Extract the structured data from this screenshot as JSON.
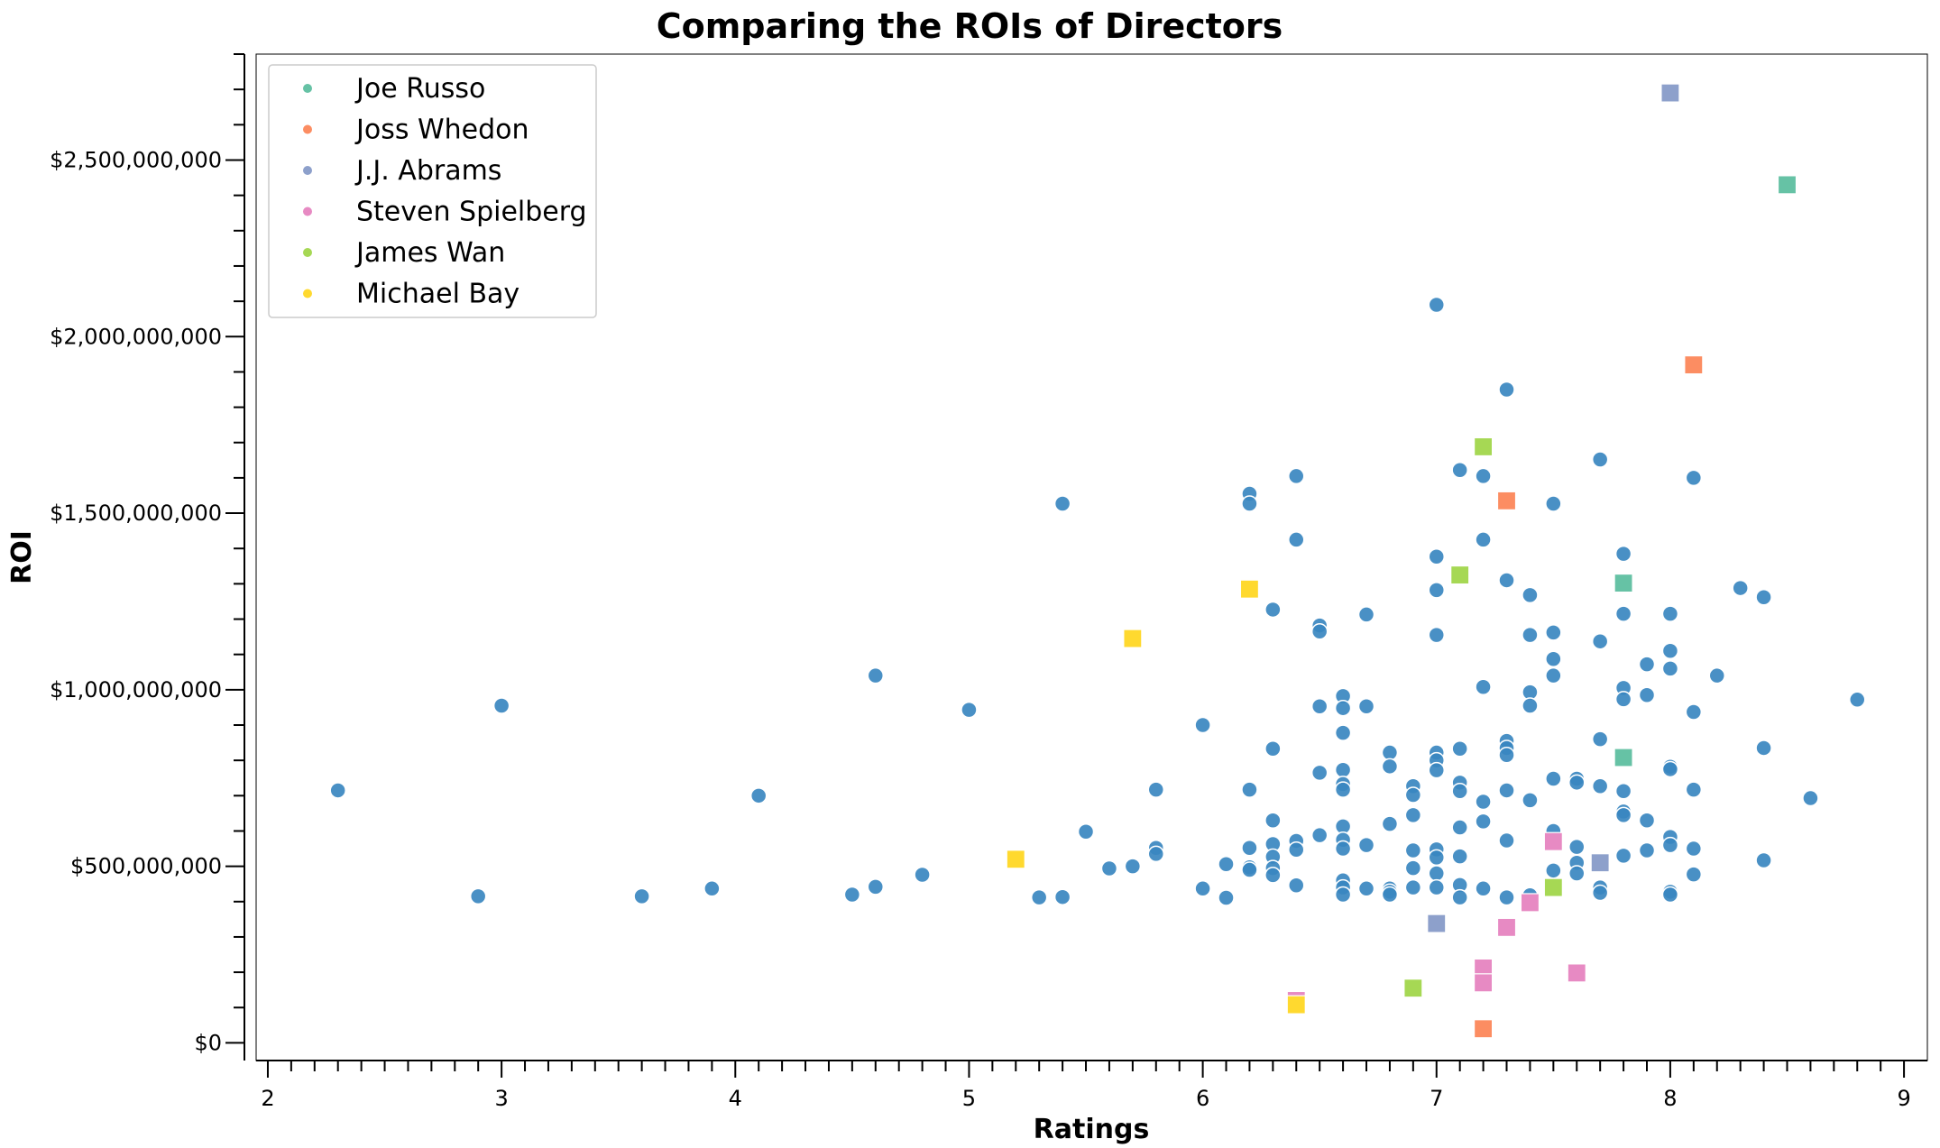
{
  "chart_data": {
    "type": "scatter",
    "title": "Comparing the ROIs of Directors",
    "xlabel": "Ratings",
    "ylabel": "ROI",
    "xlim": [
      1.95,
      9.1
    ],
    "ylim": [
      -50000000,
      2800000000
    ],
    "x_ticks": [
      2,
      3,
      4,
      5,
      6,
      7,
      8,
      9
    ],
    "x_tick_labels": [
      "2",
      "3",
      "4",
      "5",
      "6",
      "7",
      "8",
      "9"
    ],
    "y_ticks": [
      0,
      500000000,
      1000000000,
      1500000000,
      2000000000,
      2500000000
    ],
    "y_tick_labels": [
      "$0",
      "$500,000,000",
      "$1,000,000,000",
      "$1,500,000,000",
      "$2,000,000,000",
      "$2,500,000,000"
    ],
    "grid": false,
    "legend_position": "top-left",
    "series": [
      {
        "color": "#3a87c0",
        "marker": "circle",
        "points": [
          [
            2.3,
            715000000
          ],
          [
            2.9,
            415000000
          ],
          [
            3.0,
            955000000
          ],
          [
            3.6,
            415000000
          ],
          [
            3.9,
            437000000
          ],
          [
            4.1,
            700000000
          ],
          [
            4.5,
            420000000
          ],
          [
            4.6,
            1040000000
          ],
          [
            4.6,
            442000000
          ],
          [
            4.8,
            476000000
          ],
          [
            5.0,
            943000000
          ],
          [
            5.3,
            412000000
          ],
          [
            5.4,
            1527000000
          ],
          [
            5.4,
            413000000
          ],
          [
            5.5,
            598000000
          ],
          [
            5.6,
            494000000
          ],
          [
            5.7,
            500000000
          ],
          [
            5.8,
            717000000
          ],
          [
            5.8,
            552000000
          ],
          [
            5.8,
            535000000
          ],
          [
            6.0,
            900000000
          ],
          [
            6.0,
            437000000
          ],
          [
            6.1,
            506000000
          ],
          [
            6.1,
            411000000
          ],
          [
            6.2,
            1555000000
          ],
          [
            6.2,
            1527000000
          ],
          [
            6.2,
            717000000
          ],
          [
            6.2,
            552000000
          ],
          [
            6.2,
            497000000
          ],
          [
            6.2,
            490000000
          ],
          [
            6.3,
            1227000000
          ],
          [
            6.3,
            833000000
          ],
          [
            6.3,
            630000000
          ],
          [
            6.3,
            563000000
          ],
          [
            6.3,
            527000000
          ],
          [
            6.3,
            495000000
          ],
          [
            6.3,
            475000000
          ],
          [
            6.4,
            1605000000
          ],
          [
            6.4,
            1425000000
          ],
          [
            6.4,
            572000000
          ],
          [
            6.4,
            547000000
          ],
          [
            6.4,
            446000000
          ],
          [
            6.5,
            1182000000
          ],
          [
            6.5,
            1165000000
          ],
          [
            6.5,
            953000000
          ],
          [
            6.5,
            765000000
          ],
          [
            6.5,
            588000000
          ],
          [
            6.6,
            982000000
          ],
          [
            6.6,
            948000000
          ],
          [
            6.6,
            878000000
          ],
          [
            6.6,
            773000000
          ],
          [
            6.6,
            733000000
          ],
          [
            6.6,
            717000000
          ],
          [
            6.6,
            613000000
          ],
          [
            6.6,
            575000000
          ],
          [
            6.6,
            550000000
          ],
          [
            6.6,
            460000000
          ],
          [
            6.6,
            440000000
          ],
          [
            6.6,
            420000000
          ],
          [
            6.7,
            1213000000
          ],
          [
            6.7,
            953000000
          ],
          [
            6.7,
            560000000
          ],
          [
            6.7,
            437000000
          ],
          [
            6.8,
            822000000
          ],
          [
            6.8,
            783000000
          ],
          [
            6.8,
            620000000
          ],
          [
            6.8,
            437000000
          ],
          [
            6.8,
            428000000
          ],
          [
            6.8,
            420000000
          ],
          [
            6.9,
            727000000
          ],
          [
            6.9,
            702000000
          ],
          [
            6.9,
            645000000
          ],
          [
            6.9,
            545000000
          ],
          [
            6.9,
            495000000
          ],
          [
            6.9,
            440000000
          ],
          [
            7.0,
            2090000000
          ],
          [
            7.0,
            1377000000
          ],
          [
            7.0,
            1282000000
          ],
          [
            7.0,
            1155000000
          ],
          [
            7.0,
            822000000
          ],
          [
            7.0,
            800000000
          ],
          [
            7.0,
            772000000
          ],
          [
            7.0,
            548000000
          ],
          [
            7.0,
            525000000
          ],
          [
            7.0,
            480000000
          ],
          [
            7.0,
            440000000
          ],
          [
            7.1,
            1622000000
          ],
          [
            7.1,
            833000000
          ],
          [
            7.1,
            737000000
          ],
          [
            7.1,
            713000000
          ],
          [
            7.1,
            610000000
          ],
          [
            7.1,
            528000000
          ],
          [
            7.1,
            447000000
          ],
          [
            7.1,
            412000000
          ],
          [
            7.2,
            1605000000
          ],
          [
            7.2,
            1425000000
          ],
          [
            7.2,
            1008000000
          ],
          [
            7.2,
            683000000
          ],
          [
            7.2,
            627000000
          ],
          [
            7.2,
            437000000
          ],
          [
            7.3,
            1850000000
          ],
          [
            7.3,
            1310000000
          ],
          [
            7.3,
            855000000
          ],
          [
            7.3,
            835000000
          ],
          [
            7.3,
            815000000
          ],
          [
            7.3,
            715000000
          ],
          [
            7.3,
            573000000
          ],
          [
            7.3,
            412000000
          ],
          [
            7.4,
            1268000000
          ],
          [
            7.4,
            1155000000
          ],
          [
            7.4,
            993000000
          ],
          [
            7.4,
            955000000
          ],
          [
            7.4,
            687000000
          ],
          [
            7.4,
            418000000
          ],
          [
            7.5,
            1527000000
          ],
          [
            7.5,
            1162000000
          ],
          [
            7.5,
            1087000000
          ],
          [
            7.5,
            1040000000
          ],
          [
            7.5,
            748000000
          ],
          [
            7.5,
            600000000
          ],
          [
            7.5,
            488000000
          ],
          [
            7.6,
            748000000
          ],
          [
            7.6,
            737000000
          ],
          [
            7.6,
            555000000
          ],
          [
            7.6,
            510000000
          ],
          [
            7.6,
            480000000
          ],
          [
            7.7,
            1652000000
          ],
          [
            7.7,
            1137000000
          ],
          [
            7.7,
            860000000
          ],
          [
            7.7,
            727000000
          ],
          [
            7.7,
            440000000
          ],
          [
            7.7,
            425000000
          ],
          [
            7.8,
            1385000000
          ],
          [
            7.8,
            1215000000
          ],
          [
            7.8,
            1005000000
          ],
          [
            7.8,
            973000000
          ],
          [
            7.8,
            713000000
          ],
          [
            7.8,
            655000000
          ],
          [
            7.8,
            645000000
          ],
          [
            7.8,
            530000000
          ],
          [
            7.9,
            1072000000
          ],
          [
            7.9,
            985000000
          ],
          [
            7.9,
            630000000
          ],
          [
            7.9,
            545000000
          ],
          [
            8.0,
            1215000000
          ],
          [
            8.0,
            1110000000
          ],
          [
            8.0,
            1060000000
          ],
          [
            8.0,
            782000000
          ],
          [
            8.0,
            775000000
          ],
          [
            8.0,
            583000000
          ],
          [
            8.0,
            560000000
          ],
          [
            8.0,
            428000000
          ],
          [
            8.0,
            420000000
          ],
          [
            8.1,
            1600000000
          ],
          [
            8.1,
            937000000
          ],
          [
            8.1,
            717000000
          ],
          [
            8.1,
            550000000
          ],
          [
            8.1,
            477000000
          ],
          [
            8.2,
            1040000000
          ],
          [
            8.3,
            1288000000
          ],
          [
            8.4,
            1262000000
          ],
          [
            8.4,
            835000000
          ],
          [
            8.4,
            517000000
          ],
          [
            8.6,
            693000000
          ],
          [
            8.8,
            972000000
          ]
        ]
      },
      {
        "name": "Joe Russo",
        "color": "#66c2a5",
        "marker": "square",
        "points": [
          [
            8.5,
            2430000000
          ],
          [
            7.8,
            1302000000
          ],
          [
            7.8,
            808000000
          ]
        ]
      },
      {
        "name": "Joss Whedon",
        "color": "#fc8d62",
        "marker": "square",
        "points": [
          [
            8.1,
            1920000000
          ],
          [
            7.3,
            1535000000
          ],
          [
            7.2,
            40000000
          ]
        ]
      },
      {
        "name": "J.J. Abrams",
        "color": "#8da0cb",
        "marker": "square",
        "points": [
          [
            8.0,
            2690000000
          ],
          [
            7.7,
            510000000
          ],
          [
            7.0,
            338000000
          ]
        ]
      },
      {
        "name": "Steven Spielberg",
        "color": "#e78ac3",
        "marker": "square",
        "points": [
          [
            7.5,
            570000000
          ],
          [
            7.4,
            397000000
          ],
          [
            7.3,
            327000000
          ],
          [
            7.2,
            212000000
          ],
          [
            7.2,
            170000000
          ],
          [
            7.6,
            198000000
          ],
          [
            6.4,
            120000000
          ]
        ]
      },
      {
        "name": "James Wan",
        "color": "#a6d854",
        "marker": "square",
        "points": [
          [
            7.2,
            1688000000
          ],
          [
            7.1,
            1325000000
          ],
          [
            7.5,
            440000000
          ],
          [
            6.9,
            155000000
          ]
        ]
      },
      {
        "name": "Michael Bay",
        "color": "#ffd92f",
        "marker": "square",
        "points": [
          [
            6.2,
            1285000000
          ],
          [
            5.7,
            1145000000
          ],
          [
            5.2,
            520000000
          ],
          [
            6.4,
            108000000
          ]
        ]
      }
    ]
  }
}
